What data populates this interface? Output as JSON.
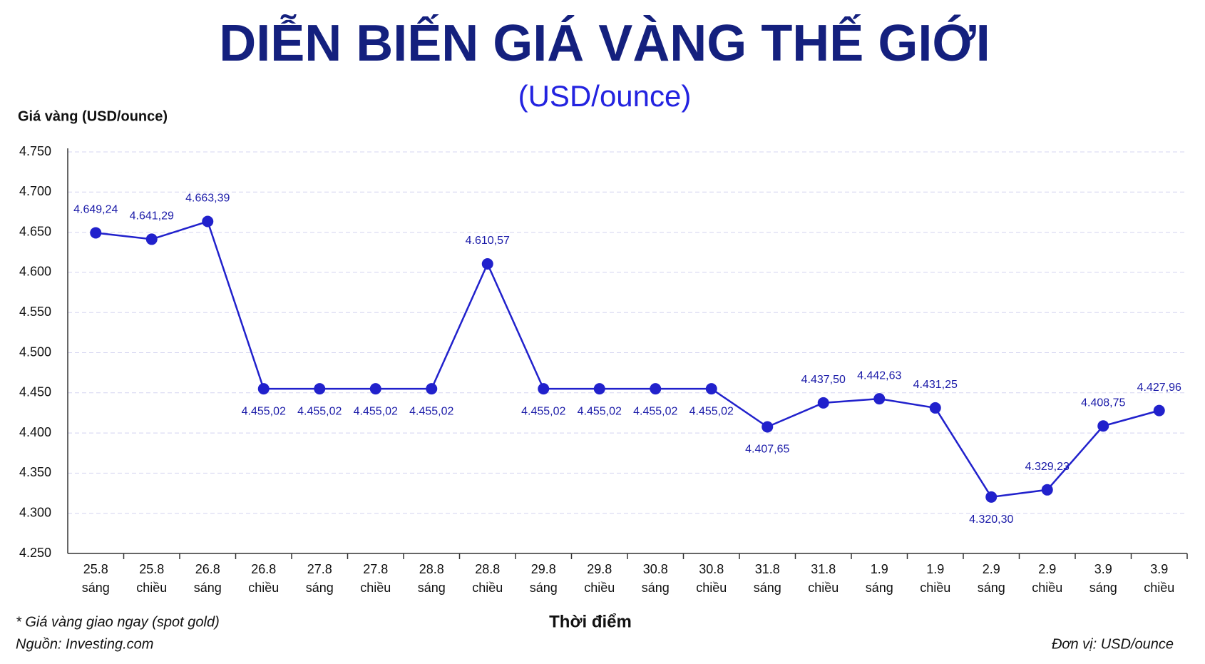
{
  "chart_data": {
    "type": "line",
    "title": "DIỄN BIẾN GIÁ VÀNG THẾ GIỚI",
    "subtitle": "(USD/ounce)",
    "y_label": "Giá vàng (USD/ounce)",
    "x_label": "Thời điểm",
    "note": "* Giá vàng giao ngay (spot gold)",
    "source": "Nguồn: Investing.com",
    "unit": "Đơn vị: USD/ounce",
    "categories": [
      [
        "25.8",
        "sáng"
      ],
      [
        "25.8",
        "chiều"
      ],
      [
        "26.8",
        "sáng"
      ],
      [
        "26.8",
        "chiều"
      ],
      [
        "27.8",
        "sáng"
      ],
      [
        "27.8",
        "chiều"
      ],
      [
        "28.8",
        "sáng"
      ],
      [
        "28.8",
        "chiều"
      ],
      [
        "29.8",
        "sáng"
      ],
      [
        "29.8",
        "chiều"
      ],
      [
        "30.8",
        "sáng"
      ],
      [
        "30.8",
        "chiều"
      ],
      [
        "31.8",
        "sáng"
      ],
      [
        "31.8",
        "chiều"
      ],
      [
        "1.9",
        "sáng"
      ],
      [
        "1.9",
        "chiều"
      ],
      [
        "2.9",
        "sáng"
      ],
      [
        "2.9",
        "chiều"
      ],
      [
        "3.9",
        "sáng"
      ],
      [
        "3.9",
        "chiều"
      ]
    ],
    "series": [
      {
        "name": "Giá vàng",
        "color": "#2121cc",
        "values": [
          4649.24,
          4641.29,
          4663.39,
          4455.02,
          4455.02,
          4455.02,
          4455.02,
          4610.57,
          4455.02,
          4455.02,
          4455.02,
          4455.02,
          4407.65,
          4437.5,
          4442.63,
          4431.25,
          4320.3,
          4329.23,
          4408.75,
          4427.96
        ],
        "value_labels": [
          "4.649,24",
          "4.641,29",
          "4.663,39",
          "4.455,02",
          "4.455,02",
          "4.455,02",
          "4.455,02",
          "4.610,57",
          "4.455,02",
          "4.455,02",
          "4.455,02",
          "4.455,02",
          "4.407,65",
          "4.437,50",
          "4.442,63",
          "4.431,25",
          "4.320,30",
          "4.329,23",
          "4.408,75",
          "4.427,96"
        ]
      }
    ],
    "ylim": [
      4250,
      4750
    ],
    "yticks": [
      {
        "value": 4250,
        "label": "4.250"
      },
      {
        "value": 4300,
        "label": "4.300"
      },
      {
        "value": 4350,
        "label": "4.350"
      },
      {
        "value": 4400,
        "label": "4.400"
      },
      {
        "value": 4450,
        "label": "4.450"
      },
      {
        "value": 4500,
        "label": "4.500"
      },
      {
        "value": 4550,
        "label": "4.550"
      },
      {
        "value": 4600,
        "label": "4.600"
      },
      {
        "value": 4650,
        "label": "4.650"
      },
      {
        "value": 4700,
        "label": "4.700"
      },
      {
        "value": 4750,
        "label": "4.750"
      }
    ],
    "grid": true
  }
}
